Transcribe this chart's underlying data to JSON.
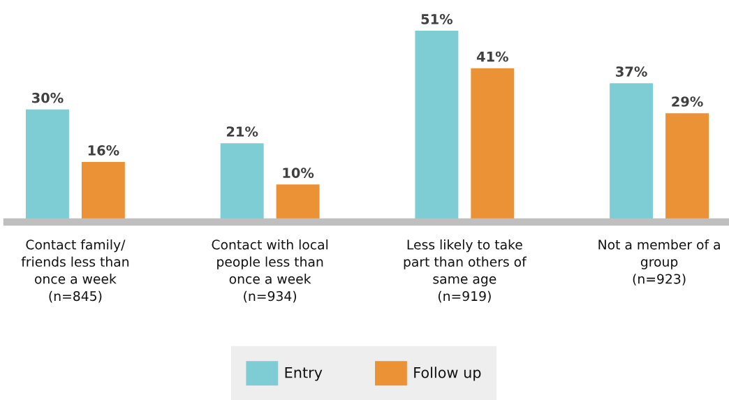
{
  "chart_data": {
    "type": "bar",
    "categories": [
      "Contact family/\nfriends less than\nonce a week\n(n=845)",
      "Contact with local\npeople less than\nonce a week\n(n=934)",
      "Less likely to take\npart than others of\nsame age\n(n=919)",
      "Not a member of a\ngroup\n(n=923)"
    ],
    "series": [
      {
        "name": "Entry",
        "color": "#7ecdd4",
        "values": [
          30,
          21,
          51,
          37
        ],
        "value_labels": [
          "30%",
          "21%",
          "51%",
          "37%"
        ]
      },
      {
        "name": "Follow up",
        "color": "#ec9236",
        "values": [
          16,
          10,
          41,
          29
        ],
        "value_labels": [
          "16%",
          "10%",
          "41%",
          "29%"
        ]
      }
    ],
    "tick_labels": "x",
    "legend": "bottom"
  }
}
